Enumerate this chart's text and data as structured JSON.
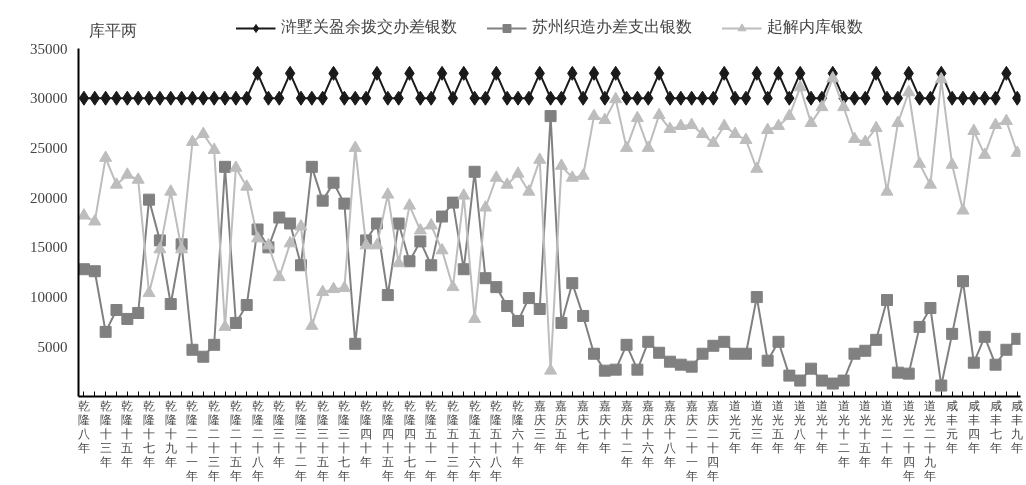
{
  "chart_data": {
    "type": "line",
    "ylabel": "库平两",
    "categories": [
      "乾隆八年",
      null,
      "乾隆十三年",
      null,
      "乾隆十五年",
      null,
      "乾隆十七年",
      null,
      "乾隆十九年",
      null,
      "乾隆二十一年",
      null,
      "乾隆二十三年",
      null,
      "乾隆二十五年",
      null,
      "乾隆二十八年",
      null,
      "乾隆三十年",
      null,
      "乾隆三十二年",
      null,
      "乾隆三十五年",
      null,
      "乾隆三十七年",
      null,
      "乾隆四十年",
      null,
      "乾隆四十五年",
      null,
      "乾隆四十七年",
      null,
      "乾隆五十一年",
      null,
      "乾隆五十三年",
      null,
      "乾隆五十六年",
      null,
      "乾隆五十八年",
      null,
      "乾隆六十年",
      null,
      "嘉庆三年",
      null,
      "嘉庆五年",
      null,
      "嘉庆七年",
      null,
      "嘉庆十年",
      null,
      "嘉庆十二年",
      null,
      "嘉庆十六年",
      null,
      "嘉庆十八年",
      null,
      "嘉庆二十一年",
      null,
      "嘉庆二十四年",
      null,
      "道光元年",
      null,
      "道光三年",
      null,
      "道光五年",
      null,
      "道光八年",
      null,
      "道光十年",
      null,
      "道光十二年",
      null,
      "道光十五年",
      null,
      "道光二十年",
      null,
      "道光二十四年",
      null,
      "道光二十九年",
      null,
      "咸丰元年",
      null,
      "咸丰四年",
      null,
      "咸丰七年",
      null,
      "咸丰九年"
    ],
    "series": [
      {
        "name": "浒墅关盈余拨交办差银数",
        "color": "#1a1a1a",
        "marker": "diamond",
        "values": [
          30000,
          30000,
          30000,
          30000,
          30000,
          30000,
          30000,
          30000,
          30000,
          30000,
          30000,
          30000,
          30000,
          30000,
          30000,
          30000,
          32500,
          30000,
          30000,
          32500,
          30000,
          30000,
          30000,
          32500,
          30000,
          30000,
          30000,
          32500,
          30000,
          30000,
          32500,
          30000,
          30000,
          32500,
          30000,
          32500,
          30000,
          30000,
          32500,
          30000,
          30000,
          30000,
          32500,
          30000,
          30000,
          32500,
          30000,
          32500,
          30000,
          32500,
          30000,
          30000,
          30000,
          32500,
          30000,
          30000,
          30000,
          30000,
          30000,
          32500,
          30000,
          30000,
          32500,
          30000,
          32500,
          30000,
          32500,
          30000,
          30000,
          32500,
          30000,
          30000,
          30000,
          32500,
          30000,
          30000,
          32500,
          30000,
          30000,
          32500,
          30000,
          30000,
          30000,
          30000,
          30000,
          32500,
          30000
        ]
      },
      {
        "name": "苏州织造办差支出银数",
        "color": "#808080",
        "marker": "square",
        "values": [
          12800,
          12600,
          6500,
          8700,
          7800,
          8400,
          19800,
          15700,
          9300,
          15300,
          4700,
          4000,
          5200,
          23100,
          7400,
          9200,
          16800,
          15000,
          18000,
          17400,
          13200,
          23100,
          19700,
          21500,
          19400,
          5300,
          15700,
          17400,
          10200,
          17400,
          13600,
          15600,
          13200,
          18100,
          19500,
          12800,
          22600,
          11900,
          11000,
          9100,
          7600,
          9900,
          8800,
          28200,
          7400,
          11400,
          8100,
          4300,
          2600,
          2700,
          5200,
          2700,
          5500,
          4400,
          3500,
          3200,
          3000,
          4300,
          5100,
          5500,
          4300,
          4300,
          10000,
          3600,
          5500,
          2100,
          1600,
          2800,
          1600,
          1300,
          1600,
          4300,
          4600,
          5700,
          9700,
          2400,
          2300,
          7000,
          8900,
          1100,
          6300,
          11600,
          3400,
          6000,
          3200,
          4700,
          5800
        ]
      },
      {
        "name": "起解内库银数",
        "color": "#bdbdbd",
        "marker": "triangle",
        "values": [
          18200,
          17600,
          24000,
          21300,
          22300,
          21800,
          10400,
          14800,
          20600,
          14800,
          25600,
          26400,
          24800,
          7000,
          23000,
          21100,
          15900,
          15200,
          12000,
          15400,
          17100,
          7100,
          10500,
          10800,
          10900,
          25000,
          15200,
          15200,
          20300,
          13400,
          19200,
          16700,
          17200,
          14700,
          11000,
          20200,
          7800,
          19000,
          22000,
          21300,
          22400,
          20600,
          23800,
          2600,
          23200,
          22000,
          22200,
          28200,
          27800,
          29900,
          25000,
          28000,
          25000,
          28300,
          26900,
          27200,
          27300,
          26400,
          25500,
          27200,
          26400,
          25800,
          22900,
          26800,
          27200,
          28200,
          31100,
          27500,
          29100,
          32000,
          29100,
          25900,
          25600,
          27000,
          20600,
          27500,
          30600,
          23400,
          21300,
          31900,
          23300,
          18700,
          26700,
          24300,
          27300,
          27700,
          24500
        ]
      }
    ],
    "ylim": [
      0,
      35000
    ],
    "yticks": [
      5000,
      10000,
      15000,
      20000,
      25000,
      30000,
      35000
    ],
    "legend": "top",
    "line_style": "solid"
  }
}
